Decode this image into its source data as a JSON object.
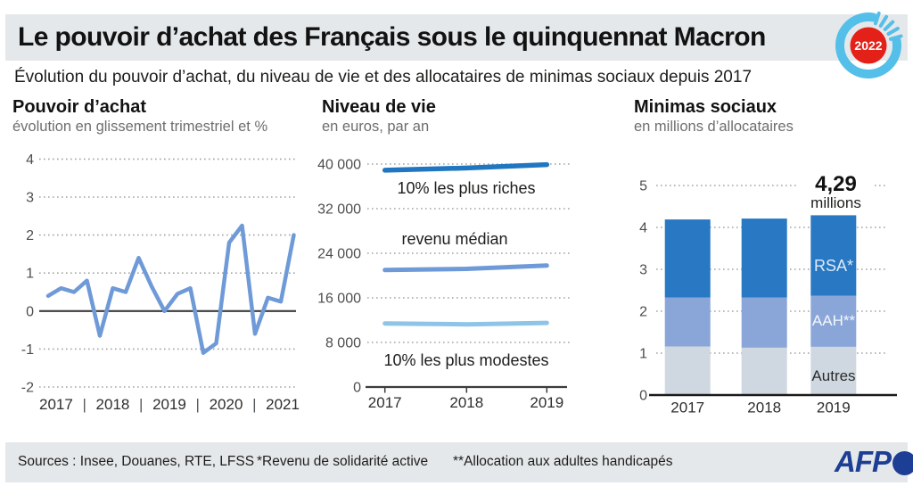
{
  "header": {
    "title": "Le pouvoir d’achat des Français sous le quinquennat Macron",
    "subtitle": "Évolution du pouvoir d’achat, du niveau de vie et des allocataires de minimas sociaux depuis 2017",
    "badge_year": "2022"
  },
  "colors": {
    "header_bg": "#e5e8ea",
    "pouvoir_line": "#6f9ad8",
    "riches_line": "#2076c0",
    "median_line": "#6f9ad8",
    "modestes_line": "#8ec4e8",
    "bar_rsa": "#2878c3",
    "bar_aah": "#8aa6d8",
    "bar_autres": "#cfd8e0",
    "badge_ring": "#54bfe8",
    "badge_red": "#e32119",
    "afp_blue": "#1c3e94",
    "grid_dots": "#a3a3a3",
    "zero_line": "#3c3c3c"
  },
  "chart_data": [
    {
      "id": "pouvoir-achat",
      "type": "line",
      "title": "Pouvoir d’achat",
      "subtitle": "évolution en glissement trimestriel et %",
      "ylim": [
        -2,
        4
      ],
      "yticks": [
        4,
        3,
        2,
        1,
        0,
        -1,
        -2
      ],
      "x_years": [
        "2017",
        "2018",
        "2019",
        "2020",
        "2021"
      ],
      "values": [
        0.4,
        0.6,
        0.5,
        0.8,
        -0.65,
        0.6,
        0.5,
        1.4,
        0.65,
        0.0,
        0.45,
        0.6,
        -1.1,
        -0.85,
        1.8,
        2.25,
        -0.6,
        0.35,
        0.25,
        2.0
      ],
      "grid": true,
      "legend_position": "none"
    },
    {
      "id": "niveau-de-vie",
      "type": "line",
      "title": "Niveau de vie",
      "subtitle": "en euros, par an",
      "ylim": [
        0,
        40000
      ],
      "ytick_labels": [
        "40 000",
        "32 000",
        "24 000",
        "16 000",
        "8 000",
        "0"
      ],
      "ytick_values": [
        40000,
        32000,
        24000,
        16000,
        8000,
        0
      ],
      "x": [
        "2017",
        "2018",
        "2019"
      ],
      "series": [
        {
          "name": "10% les plus riches",
          "values": [
            38900,
            39300,
            39900
          ],
          "color": "#2076c0"
        },
        {
          "name": "revenu médian",
          "values": [
            21000,
            21200,
            21800
          ],
          "color": "#6f9ad8"
        },
        {
          "name": "10% les plus modestes",
          "values": [
            11400,
            11250,
            11500
          ],
          "color": "#8ec4e8"
        }
      ],
      "grid": true,
      "legend_position": "inline-labels"
    },
    {
      "id": "minimas-sociaux",
      "type": "stacked-bar",
      "title": "Minimas sociaux",
      "subtitle": "en millions d’allocataires",
      "ylim": [
        0,
        5
      ],
      "yticks": [
        5,
        4,
        3,
        2,
        1,
        0
      ],
      "categories": [
        "2017",
        "2018",
        "2019"
      ],
      "series": [
        {
          "name": "Autres",
          "values": [
            1.16,
            1.13,
            1.15
          ],
          "color": "#cfd8e0"
        },
        {
          "name": "AAH**",
          "values": [
            1.17,
            1.2,
            1.22
          ],
          "color": "#8aa6d8"
        },
        {
          "name": "RSA*",
          "values": [
            1.86,
            1.88,
            1.92
          ],
          "color": "#2878c3"
        }
      ],
      "totals": [
        4.19,
        4.21,
        4.29
      ],
      "annotation": {
        "value": "4,29",
        "unit": "millions"
      },
      "grid": true,
      "legend_position": "inline-labels"
    }
  ],
  "footer": {
    "sources": "Sources : Insee, Douanes, RTE, LFSS",
    "note_rsa": "*Revenu de solidarité active",
    "note_aah": "**Allocation aux adultes handicapés",
    "logo_text": "AFP"
  }
}
